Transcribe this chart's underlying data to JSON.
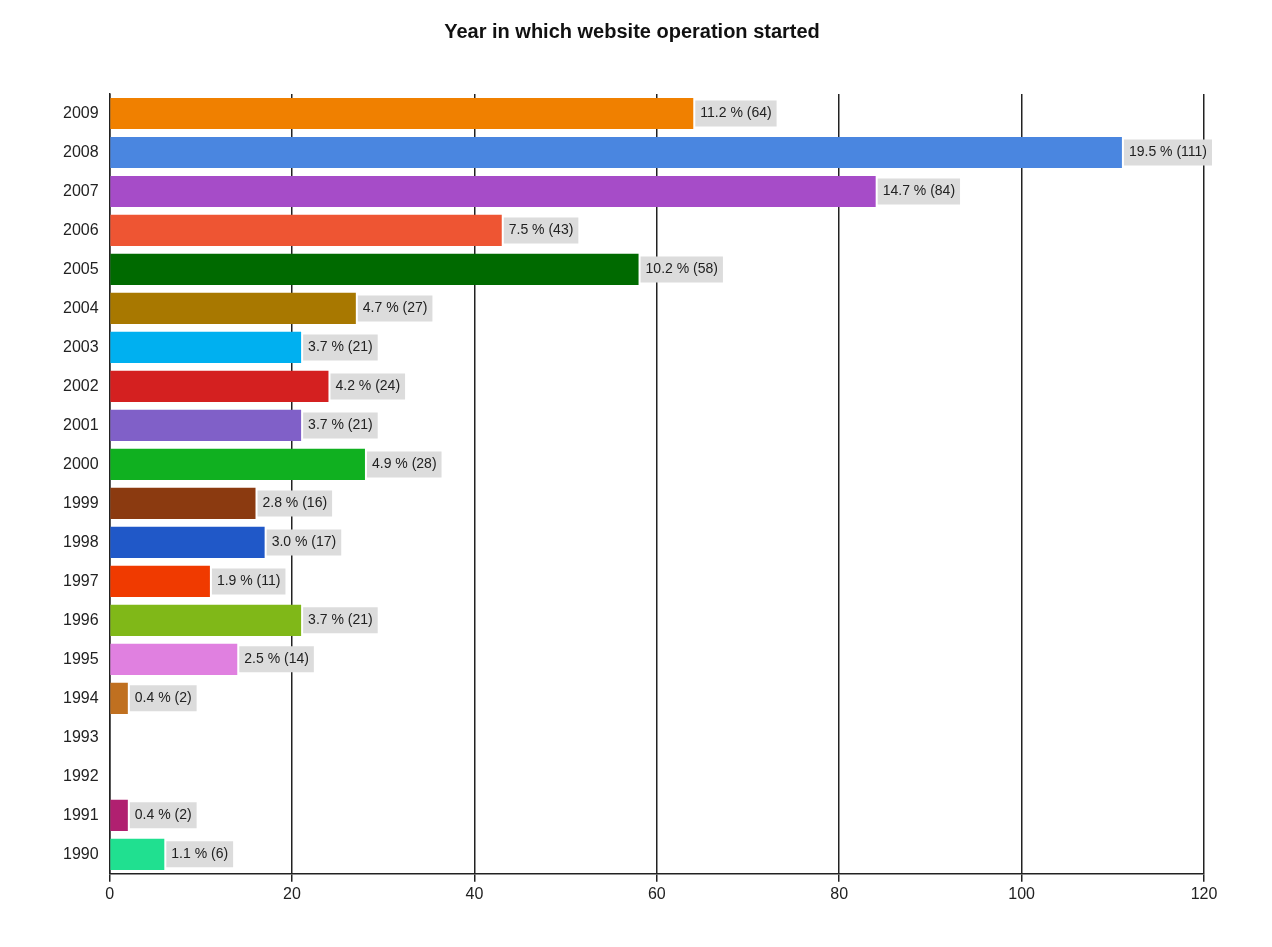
{
  "chart_data": {
    "type": "bar",
    "orientation": "horizontal",
    "title": "Year in which website operation started",
    "categories": [
      "2009",
      "2008",
      "2007",
      "2006",
      "2005",
      "2004",
      "2003",
      "2002",
      "2001",
      "2000",
      "1999",
      "1998",
      "1997",
      "1996",
      "1995",
      "1994",
      "1993",
      "1992",
      "1991",
      "1990"
    ],
    "values": [
      64,
      111,
      84,
      43,
      58,
      27,
      21,
      24,
      21,
      28,
      16,
      17,
      11,
      21,
      14,
      2,
      null,
      null,
      2,
      6
    ],
    "colors": [
      "#f08000",
      "#4a86e0",
      "#a64cc8",
      "#ee5533",
      "#006a00",
      "#a87800",
      "#00b0f0",
      "#d42020",
      "#8060c8",
      "#10b020",
      "#8b3a10",
      "#2058c8",
      "#f03a00",
      "#80b818",
      "#e080e0",
      "#c07020",
      null,
      null,
      "#b02070",
      "#20e090"
    ],
    "value_labels": [
      "11.2 % (64)",
      "19.5 % (111)",
      "14.7 % (84)",
      "7.5 % (43)",
      "10.2 % (58)",
      "4.7 % (27)",
      "3.7 % (21)",
      "4.2 % (24)",
      "3.7 % (21)",
      "4.9 % (28)",
      "2.8 % (16)",
      "3.0 % (17)",
      "1.9 % (11)",
      "3.7 % (21)",
      "2.5 % (14)",
      "0.4 % (2)",
      null,
      null,
      "0.4 % (2)",
      "1.1 % (6)"
    ],
    "xlim": [
      0,
      120
    ],
    "xticks": [
      0,
      20,
      40,
      60,
      80,
      100,
      120
    ],
    "grid": "x",
    "legend": false
  }
}
